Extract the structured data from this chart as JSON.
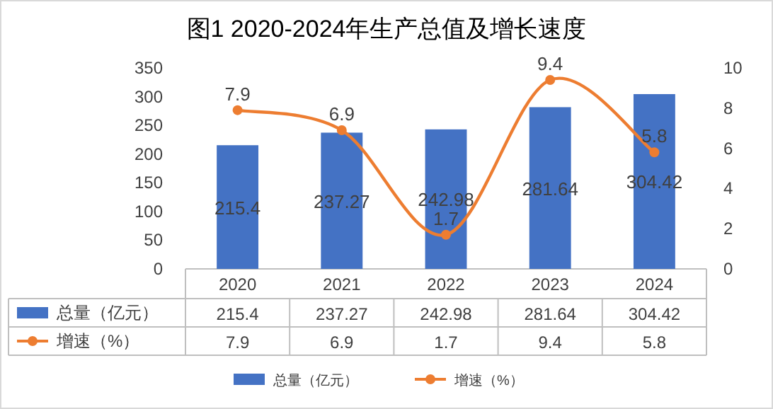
{
  "chart_data": {
    "type": "bar",
    "title": "图1  2020-2024年生产总值及增长速度",
    "categories": [
      "2020",
      "2021",
      "2022",
      "2023",
      "2024"
    ],
    "series": [
      {
        "name": "总量（亿元）",
        "color": "#4472c4",
        "values": [
          215.4,
          237.27,
          242.98,
          281.64,
          304.42
        ]
      },
      {
        "name": "增速（%）",
        "type": "line",
        "axis": "y2",
        "color": "#ed7d31",
        "values": [
          7.9,
          6.9,
          1.7,
          9.4,
          5.8
        ]
      }
    ],
    "annotations": [
      "215.4",
      "237.27",
      "242.98",
      "281.64",
      "304.42",
      "7.9",
      "6.9",
      "1.7",
      "9.4",
      "5.8"
    ],
    "ylim": [
      0,
      350
    ],
    "yticks": [
      0,
      50,
      100,
      150,
      200,
      250,
      300,
      350
    ],
    "y2lim": [
      0,
      10
    ],
    "y2ticks": [
      0,
      2,
      4,
      6,
      8,
      10
    ],
    "data_labels": true,
    "legend": "bottom",
    "marker": "circle"
  }
}
